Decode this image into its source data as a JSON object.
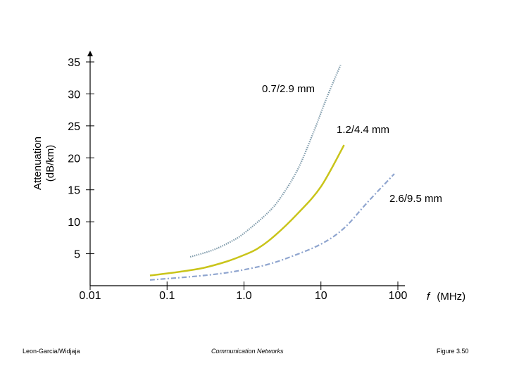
{
  "chart_data": {
    "type": "line",
    "ylabel_line1": "Attenuation",
    "ylabel_line2": "(dB/km)",
    "xlabel_symbol": "f",
    "xlabel_unit": "(MHz)",
    "x_scale": "log",
    "xlim": [
      0.01,
      100
    ],
    "ylim": [
      0,
      35
    ],
    "grid": false,
    "x_ticks": [
      {
        "value": 0.01,
        "label": "0.01"
      },
      {
        "value": 0.1,
        "label": "0.1"
      },
      {
        "value": 1,
        "label": "1.0"
      },
      {
        "value": 10,
        "label": "10"
      },
      {
        "value": 100,
        "label": "100"
      }
    ],
    "y_ticks": [
      {
        "value": 5,
        "label": "5"
      },
      {
        "value": 10,
        "label": "10"
      },
      {
        "value": 15,
        "label": "15"
      },
      {
        "value": 20,
        "label": "20"
      },
      {
        "value": 25,
        "label": "25"
      },
      {
        "value": 30,
        "label": "30"
      },
      {
        "value": 35,
        "label": "35"
      }
    ],
    "series": [
      {
        "name": "0.7/2.9 mm",
        "color": "#7f9bab",
        "style": "dotted",
        "x": [
          0.2,
          0.4,
          0.7,
          1.0,
          2,
          3,
          5,
          8,
          12,
          18
        ],
        "y": [
          4.5,
          5.6,
          7.0,
          8.2,
          11.3,
          13.8,
          18.2,
          24.0,
          29.5,
          34.5
        ]
      },
      {
        "name": "1.2/4.4 mm",
        "color": "#c9c41a",
        "style": "solid",
        "x": [
          0.06,
          0.15,
          0.3,
          0.6,
          1.0,
          1.5,
          2.5,
          5,
          10,
          20
        ],
        "y": [
          1.6,
          2.2,
          2.8,
          3.8,
          4.8,
          5.8,
          7.8,
          11.3,
          15.5,
          22.0
        ]
      },
      {
        "name": "2.6/9.5 mm",
        "color": "#8fa5cf",
        "style": "dash-dot",
        "x": [
          0.06,
          0.2,
          0.5,
          1.0,
          2,
          4,
          10,
          20,
          40,
          90
        ],
        "y": [
          0.9,
          1.4,
          1.9,
          2.5,
          3.3,
          4.5,
          6.5,
          9.0,
          13.0,
          17.5
        ]
      }
    ]
  },
  "footer": {
    "left": "Leon-Garcia/Widjaja",
    "center": "Communication Networks",
    "right": "Figure 3.50"
  }
}
